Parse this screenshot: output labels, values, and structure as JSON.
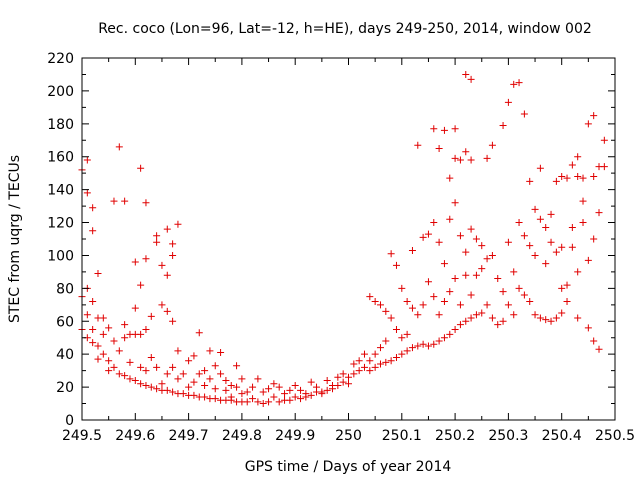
{
  "chart_data": {
    "type": "scatter",
    "title": "Rec. coco (Lon=96, Lat=-12, h=HE), days 249-250, 2014, window 002",
    "xlabel": "GPS time / Days of year 2014",
    "ylabel": "STEC from uqrg / TECUs",
    "xlim": [
      249.5,
      250.5
    ],
    "ylim": [
      0,
      220
    ],
    "xticks": [
      249.5,
      249.6,
      249.7,
      249.8,
      249.9,
      250.0,
      250.1,
      250.2,
      250.3,
      250.4,
      250.5
    ],
    "xtick_labels": [
      "249.5",
      "249.6",
      "249.7",
      "249.8",
      "249.9",
      "250",
      "250.1",
      "250.2",
      "250.3",
      "250.4",
      "250.5"
    ],
    "yticks": [
      0,
      20,
      40,
      60,
      80,
      100,
      120,
      140,
      160,
      180,
      200,
      220
    ],
    "ytick_labels": [
      "0",
      "20",
      "40",
      "60",
      "80",
      "100",
      "120",
      "140",
      "160",
      "180",
      "200",
      "220"
    ],
    "grid": false,
    "marker": "plus",
    "color": "#e00000",
    "points": [
      [
        249.5,
        152
      ],
      [
        249.5,
        75
      ],
      [
        249.5,
        55
      ],
      [
        249.51,
        158
      ],
      [
        249.51,
        138
      ],
      [
        249.51,
        80
      ],
      [
        249.51,
        64
      ],
      [
        249.51,
        50
      ],
      [
        249.52,
        129
      ],
      [
        249.52,
        115
      ],
      [
        249.52,
        72
      ],
      [
        249.52,
        55
      ],
      [
        249.52,
        47
      ],
      [
        249.53,
        89
      ],
      [
        249.53,
        62
      ],
      [
        249.53,
        45
      ],
      [
        249.53,
        37
      ],
      [
        249.54,
        62
      ],
      [
        249.54,
        52
      ],
      [
        249.54,
        40
      ],
      [
        249.55,
        56
      ],
      [
        249.55,
        36
      ],
      [
        249.55,
        30
      ],
      [
        249.56,
        133
      ],
      [
        249.56,
        48
      ],
      [
        249.56,
        32
      ],
      [
        249.57,
        166
      ],
      [
        249.57,
        42
      ],
      [
        249.57,
        28
      ],
      [
        249.58,
        133
      ],
      [
        249.58,
        58
      ],
      [
        249.58,
        50
      ],
      [
        249.58,
        27
      ],
      [
        249.59,
        52
      ],
      [
        249.59,
        35
      ],
      [
        249.59,
        25
      ],
      [
        249.6,
        96
      ],
      [
        249.6,
        68
      ],
      [
        249.6,
        52
      ],
      [
        249.6,
        24
      ],
      [
        249.61,
        153
      ],
      [
        249.61,
        82
      ],
      [
        249.61,
        52
      ],
      [
        249.61,
        32
      ],
      [
        249.61,
        22
      ],
      [
        249.62,
        132
      ],
      [
        249.62,
        98
      ],
      [
        249.62,
        55
      ],
      [
        249.62,
        30
      ],
      [
        249.62,
        21
      ],
      [
        249.63,
        63
      ],
      [
        249.63,
        38
      ],
      [
        249.63,
        20
      ],
      [
        249.64,
        112
      ],
      [
        249.64,
        108
      ],
      [
        249.64,
        32
      ],
      [
        249.64,
        19
      ],
      [
        249.65,
        94
      ],
      [
        249.65,
        70
      ],
      [
        249.65,
        22
      ],
      [
        249.65,
        18
      ],
      [
        249.66,
        116
      ],
      [
        249.66,
        88
      ],
      [
        249.66,
        66
      ],
      [
        249.66,
        28
      ],
      [
        249.66,
        18
      ],
      [
        249.67,
        107
      ],
      [
        249.67,
        100
      ],
      [
        249.67,
        60
      ],
      [
        249.67,
        32
      ],
      [
        249.67,
        17
      ],
      [
        249.68,
        119
      ],
      [
        249.68,
        42
      ],
      [
        249.68,
        25
      ],
      [
        249.68,
        16
      ],
      [
        249.69,
        28
      ],
      [
        249.69,
        16
      ],
      [
        249.7,
        36
      ],
      [
        249.7,
        20
      ],
      [
        249.7,
        15
      ],
      [
        249.71,
        39
      ],
      [
        249.71,
        23
      ],
      [
        249.71,
        15
      ],
      [
        249.72,
        53
      ],
      [
        249.72,
        28
      ],
      [
        249.72,
        14
      ],
      [
        249.73,
        30
      ],
      [
        249.73,
        21
      ],
      [
        249.73,
        14
      ],
      [
        249.74,
        42
      ],
      [
        249.74,
        25
      ],
      [
        249.74,
        13
      ],
      [
        249.75,
        33
      ],
      [
        249.75,
        19
      ],
      [
        249.75,
        13
      ],
      [
        249.76,
        41
      ],
      [
        249.76,
        28
      ],
      [
        249.76,
        12
      ],
      [
        249.77,
        24
      ],
      [
        249.77,
        18
      ],
      [
        249.77,
        12
      ],
      [
        249.78,
        21
      ],
      [
        249.78,
        14
      ],
      [
        249.78,
        12
      ],
      [
        249.79,
        33
      ],
      [
        249.79,
        20
      ],
      [
        249.79,
        11
      ],
      [
        249.8,
        25
      ],
      [
        249.8,
        16
      ],
      [
        249.8,
        11
      ],
      [
        249.81,
        17
      ],
      [
        249.81,
        11
      ],
      [
        249.82,
        20
      ],
      [
        249.82,
        13
      ],
      [
        249.83,
        25
      ],
      [
        249.83,
        11
      ],
      [
        249.84,
        17
      ],
      [
        249.84,
        10
      ],
      [
        249.85,
        19
      ],
      [
        249.85,
        11
      ],
      [
        249.86,
        22
      ],
      [
        249.86,
        14
      ],
      [
        249.87,
        20
      ],
      [
        249.87,
        11
      ],
      [
        249.88,
        16
      ],
      [
        249.88,
        12
      ],
      [
        249.89,
        18
      ],
      [
        249.89,
        12
      ],
      [
        249.9,
        21
      ],
      [
        249.9,
        14
      ],
      [
        249.91,
        18
      ],
      [
        249.91,
        13
      ],
      [
        249.92,
        16
      ],
      [
        249.92,
        14
      ],
      [
        249.93,
        23
      ],
      [
        249.93,
        15
      ],
      [
        249.94,
        20
      ],
      [
        249.94,
        17
      ],
      [
        249.95,
        17
      ],
      [
        249.95,
        16
      ],
      [
        249.96,
        24
      ],
      [
        249.96,
        18
      ],
      [
        249.97,
        21
      ],
      [
        249.97,
        19
      ],
      [
        249.98,
        26
      ],
      [
        249.98,
        21
      ],
      [
        249.99,
        28
      ],
      [
        249.99,
        23
      ],
      [
        250.0,
        26
      ],
      [
        250.0,
        22
      ],
      [
        250.01,
        34
      ],
      [
        250.01,
        28
      ],
      [
        250.02,
        36
      ],
      [
        250.02,
        30
      ],
      [
        250.03,
        40
      ],
      [
        250.03,
        32
      ],
      [
        250.04,
        75
      ],
      [
        250.04,
        36
      ],
      [
        250.04,
        30
      ],
      [
        250.05,
        72
      ],
      [
        250.05,
        40
      ],
      [
        250.05,
        32
      ],
      [
        250.06,
        70
      ],
      [
        250.06,
        44
      ],
      [
        250.06,
        34
      ],
      [
        250.07,
        66
      ],
      [
        250.07,
        48
      ],
      [
        250.07,
        35
      ],
      [
        250.08,
        101
      ],
      [
        250.08,
        62
      ],
      [
        250.08,
        36
      ],
      [
        250.09,
        94
      ],
      [
        250.09,
        55
      ],
      [
        250.09,
        38
      ],
      [
        250.1,
        80
      ],
      [
        250.1,
        50
      ],
      [
        250.1,
        40
      ],
      [
        250.11,
        72
      ],
      [
        250.11,
        52
      ],
      [
        250.11,
        42
      ],
      [
        250.12,
        103
      ],
      [
        250.12,
        68
      ],
      [
        250.12,
        44
      ],
      [
        250.13,
        167
      ],
      [
        250.13,
        64
      ],
      [
        250.13,
        45
      ],
      [
        250.14,
        111
      ],
      [
        250.14,
        70
      ],
      [
        250.14,
        46
      ],
      [
        250.15,
        113
      ],
      [
        250.15,
        84
      ],
      [
        250.15,
        45
      ],
      [
        250.16,
        177
      ],
      [
        250.16,
        120
      ],
      [
        250.16,
        75
      ],
      [
        250.16,
        46
      ],
      [
        250.17,
        165
      ],
      [
        250.17,
        108
      ],
      [
        250.17,
        64
      ],
      [
        250.17,
        48
      ],
      [
        250.18,
        176
      ],
      [
        250.18,
        95
      ],
      [
        250.18,
        72
      ],
      [
        250.18,
        50
      ],
      [
        250.19,
        147
      ],
      [
        250.19,
        122
      ],
      [
        250.19,
        78
      ],
      [
        250.19,
        52
      ],
      [
        250.2,
        177
      ],
      [
        250.2,
        159
      ],
      [
        250.2,
        132
      ],
      [
        250.2,
        86
      ],
      [
        250.2,
        55
      ],
      [
        250.21,
        158
      ],
      [
        250.21,
        112
      ],
      [
        250.21,
        70
      ],
      [
        250.21,
        58
      ],
      [
        250.22,
        210
      ],
      [
        250.22,
        163
      ],
      [
        250.22,
        102
      ],
      [
        250.22,
        88
      ],
      [
        250.22,
        60
      ],
      [
        250.23,
        207
      ],
      [
        250.23,
        158
      ],
      [
        250.23,
        116
      ],
      [
        250.23,
        76
      ],
      [
        250.23,
        62
      ],
      [
        250.24,
        110
      ],
      [
        250.24,
        88
      ],
      [
        250.24,
        64
      ],
      [
        250.25,
        106
      ],
      [
        250.25,
        92
      ],
      [
        250.25,
        65
      ],
      [
        250.26,
        159
      ],
      [
        250.26,
        98
      ],
      [
        250.26,
        70
      ],
      [
        250.27,
        167
      ],
      [
        250.27,
        100
      ],
      [
        250.27,
        62
      ],
      [
        250.28,
        86
      ],
      [
        250.28,
        58
      ],
      [
        250.29,
        179
      ],
      [
        250.29,
        78
      ],
      [
        250.29,
        60
      ],
      [
        250.3,
        193
      ],
      [
        250.3,
        108
      ],
      [
        250.3,
        70
      ],
      [
        250.31,
        204
      ],
      [
        250.31,
        90
      ],
      [
        250.31,
        64
      ],
      [
        250.32,
        205
      ],
      [
        250.32,
        120
      ],
      [
        250.32,
        80
      ],
      [
        250.33,
        186
      ],
      [
        250.33,
        112
      ],
      [
        250.33,
        76
      ],
      [
        250.34,
        145
      ],
      [
        250.34,
        106
      ],
      [
        250.34,
        72
      ],
      [
        250.35,
        128
      ],
      [
        250.35,
        100
      ],
      [
        250.35,
        64
      ],
      [
        250.36,
        153
      ],
      [
        250.36,
        122
      ],
      [
        250.36,
        62
      ],
      [
        250.37,
        117
      ],
      [
        250.37,
        95
      ],
      [
        250.37,
        61
      ],
      [
        250.38,
        125
      ],
      [
        250.38,
        108
      ],
      [
        250.38,
        60
      ],
      [
        250.39,
        145
      ],
      [
        250.39,
        102
      ],
      [
        250.39,
        62
      ],
      [
        250.4,
        148
      ],
      [
        250.4,
        105
      ],
      [
        250.4,
        80
      ],
      [
        250.4,
        65
      ],
      [
        250.41,
        147
      ],
      [
        250.41,
        82
      ],
      [
        250.41,
        72
      ],
      [
        250.42,
        155
      ],
      [
        250.42,
        117
      ],
      [
        250.42,
        105
      ],
      [
        250.43,
        160
      ],
      [
        250.43,
        148
      ],
      [
        250.43,
        90
      ],
      [
        250.43,
        62
      ],
      [
        250.44,
        147
      ],
      [
        250.44,
        133
      ],
      [
        250.44,
        120
      ],
      [
        250.45,
        180
      ],
      [
        250.45,
        97
      ],
      [
        250.45,
        56
      ],
      [
        250.46,
        185
      ],
      [
        250.46,
        148
      ],
      [
        250.46,
        110
      ],
      [
        250.46,
        48
      ],
      [
        250.47,
        154
      ],
      [
        250.47,
        126
      ],
      [
        250.47,
        43
      ],
      [
        250.48,
        170
      ],
      [
        250.48,
        154
      ]
    ]
  }
}
